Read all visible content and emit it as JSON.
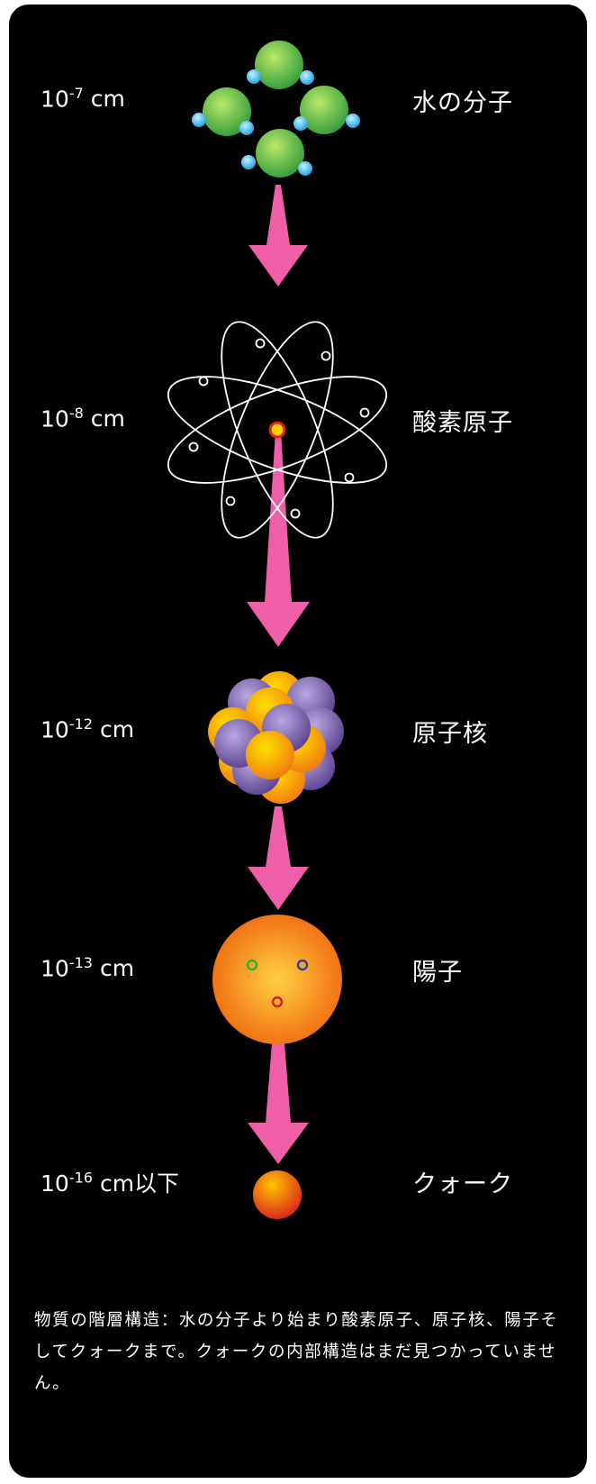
{
  "levels": [
    {
      "scale": {
        "base": "10",
        "exponent": "-7",
        "unit": "cm"
      },
      "name": "水の分子"
    },
    {
      "scale": {
        "base": "10",
        "exponent": "-8",
        "unit": "cm"
      },
      "name": "酸素原子"
    },
    {
      "scale": {
        "base": "10",
        "exponent": "-12",
        "unit": "cm"
      },
      "name": "原子核"
    },
    {
      "scale": {
        "base": "10",
        "exponent": "-13",
        "unit": "cm"
      },
      "name": "陽子"
    },
    {
      "scale": {
        "base": "10",
        "exponent": "-16",
        "unit": "cm以下"
      },
      "name": "クォーク"
    }
  ],
  "caption": "物質の階層構造：水の分子より始まり酸素原子、原子核、陽子そしてクォークまで。クォークの内部構造はまだ見つかっていません。"
}
